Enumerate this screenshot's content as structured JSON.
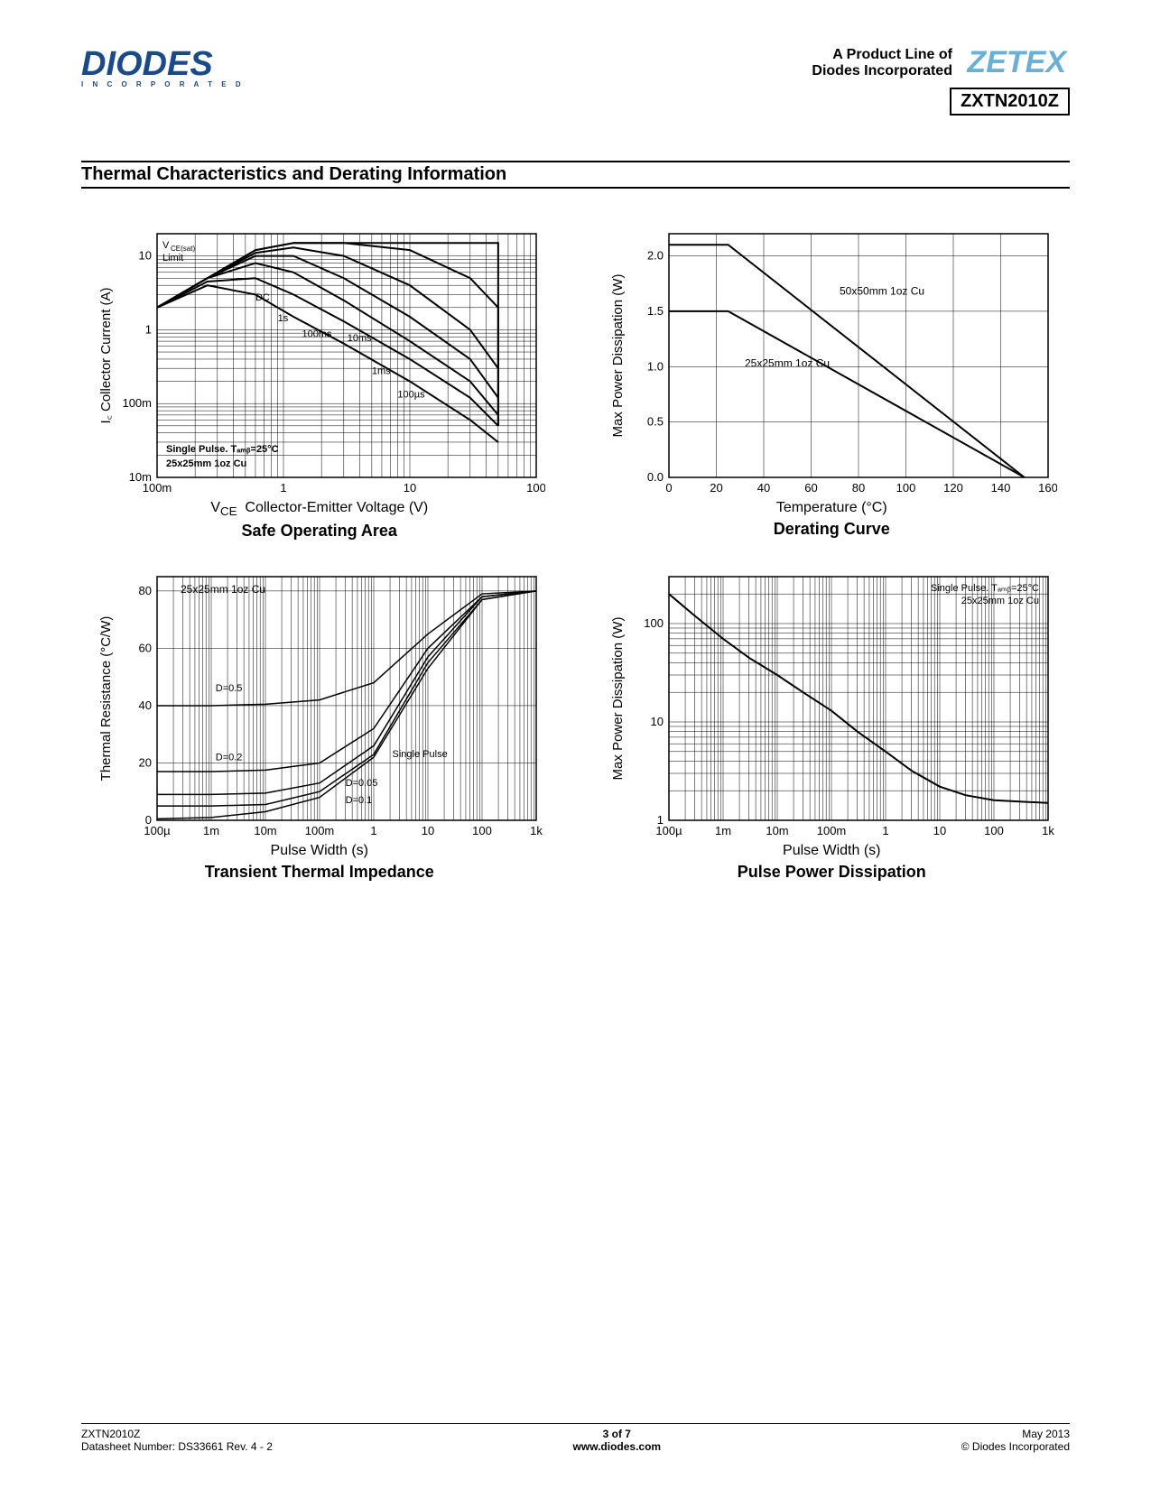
{
  "header": {
    "logo_main": "DIODES",
    "logo_sub": "I N C O R P O R A T E D",
    "product_line1": "A Product Line of",
    "product_line2": "Diodes Incorporated",
    "zetex": "ZETEX",
    "part_number": "ZXTN2010Z"
  },
  "section_title": "Thermal Characteristics and Derating Information",
  "charts": {
    "soa": {
      "type": "line-loglog",
      "title": "Safe Operating Area",
      "xlabel_pre": "V",
      "xlabel_sub": "CE",
      "xlabel_post": "  Collector-Emitter Voltage (V)",
      "ylabel_pre": "I",
      "ylabel_sub": "C",
      "ylabel_post": "  Collector Current (A)",
      "xlim": [
        0.1,
        100
      ],
      "ylim": [
        0.01,
        20
      ],
      "xticks": [
        "100m",
        "1",
        "10",
        "100"
      ],
      "yticks": [
        "10m",
        "100m",
        "1",
        "10"
      ],
      "note1": "Single Pulse. Tₐₘᵦ=25°C",
      "note2": "25x25mm 1oz Cu",
      "annotations": [
        "VCE(sat)",
        "Limit",
        "DC",
        "1s",
        "100ms",
        "10ms",
        "1ms",
        "100µs"
      ],
      "curves": {
        "limit_top": [
          [
            0.1,
            2
          ],
          [
            0.25,
            5
          ],
          [
            0.6,
            12
          ],
          [
            1.2,
            15
          ],
          [
            4,
            15
          ],
          [
            10,
            15
          ],
          [
            50,
            15
          ],
          [
            50,
            0.05
          ]
        ],
        "100us": [
          [
            0.1,
            2
          ],
          [
            0.25,
            5
          ],
          [
            0.6,
            12
          ],
          [
            1.2,
            15
          ],
          [
            3,
            15
          ],
          [
            10,
            12
          ],
          [
            30,
            5
          ],
          [
            50,
            2
          ],
          [
            50,
            0.05
          ]
        ],
        "1ms": [
          [
            0.1,
            2
          ],
          [
            0.25,
            5
          ],
          [
            0.6,
            11
          ],
          [
            1.2,
            13
          ],
          [
            3,
            10
          ],
          [
            10,
            4
          ],
          [
            30,
            1
          ],
          [
            50,
            0.3
          ]
        ],
        "10ms": [
          [
            0.1,
            2
          ],
          [
            0.25,
            5
          ],
          [
            0.6,
            10
          ],
          [
            1.2,
            10
          ],
          [
            3,
            5
          ],
          [
            10,
            1.5
          ],
          [
            30,
            0.4
          ],
          [
            50,
            0.12
          ]
        ],
        "100ms": [
          [
            0.1,
            2
          ],
          [
            0.25,
            5
          ],
          [
            0.6,
            8
          ],
          [
            1.2,
            6
          ],
          [
            3,
            2.5
          ],
          [
            10,
            0.7
          ],
          [
            30,
            0.2
          ],
          [
            50,
            0.07
          ]
        ],
        "1s": [
          [
            0.1,
            2
          ],
          [
            0.25,
            4.5
          ],
          [
            0.6,
            5
          ],
          [
            1.2,
            3
          ],
          [
            3,
            1.3
          ],
          [
            10,
            0.4
          ],
          [
            30,
            0.12
          ],
          [
            50,
            0.05
          ]
        ],
        "DC": [
          [
            0.1,
            2
          ],
          [
            0.25,
            4
          ],
          [
            0.6,
            3
          ],
          [
            1.2,
            1.5
          ],
          [
            3,
            0.65
          ],
          [
            10,
            0.2
          ],
          [
            30,
            0.06
          ],
          [
            50,
            0.03
          ],
          [
            50,
            0.03
          ]
        ]
      },
      "curve_color": "#000000",
      "background_color": "#ffffff"
    },
    "derating": {
      "type": "line",
      "title": "Derating Curve",
      "xlabel": "Temperature (°C)",
      "ylabel": "Max Power Dissipation (W)",
      "xlim": [
        0,
        160
      ],
      "ylim": [
        0,
        2.2
      ],
      "xticks": [
        0,
        20,
        40,
        60,
        80,
        100,
        120,
        140,
        160
      ],
      "yticks": [
        0.0,
        0.5,
        1.0,
        1.5,
        2.0
      ],
      "series": [
        {
          "label": "50x50mm 1oz Cu",
          "data": [
            [
              0,
              2.1
            ],
            [
              25,
              2.1
            ],
            [
              150,
              0
            ]
          ]
        },
        {
          "label": "25x25mm 1oz Cu",
          "data": [
            [
              0,
              1.5
            ],
            [
              25,
              1.5
            ],
            [
              150,
              0
            ]
          ]
        }
      ],
      "curve_color": "#000000"
    },
    "thermal": {
      "type": "line-logx",
      "title": "Transient Thermal Impedance",
      "xlabel": "Pulse Width (s)",
      "ylabel": "Thermal Resistance (°C/W)",
      "xlim": [
        0.0001,
        1000
      ],
      "ylim": [
        0,
        85
      ],
      "xticks": [
        "100µ",
        "1m",
        "10m",
        "100m",
        "1",
        "10",
        "100",
        "1k"
      ],
      "yticks": [
        0,
        20,
        40,
        60,
        80
      ],
      "note1": "25x25mm 1oz Cu",
      "annotations": [
        "D=0.5",
        "D=0.2",
        "D=0.1",
        "D=0.05",
        "Single Pulse"
      ],
      "series": {
        "D05": [
          [
            0.0001,
            40
          ],
          [
            0.001,
            40
          ],
          [
            0.01,
            40.5
          ],
          [
            0.1,
            42
          ],
          [
            1,
            48
          ],
          [
            10,
            65
          ],
          [
            100,
            79
          ],
          [
            1000,
            80
          ]
        ],
        "D02": [
          [
            0.0001,
            17
          ],
          [
            0.001,
            17
          ],
          [
            0.01,
            17.5
          ],
          [
            0.1,
            20
          ],
          [
            1,
            32
          ],
          [
            10,
            60
          ],
          [
            100,
            78
          ],
          [
            1000,
            80
          ]
        ],
        "D01": [
          [
            0.0001,
            9
          ],
          [
            0.001,
            9
          ],
          [
            0.01,
            9.5
          ],
          [
            0.1,
            13
          ],
          [
            1,
            26
          ],
          [
            10,
            57
          ],
          [
            100,
            78
          ],
          [
            1000,
            80
          ]
        ],
        "D005": [
          [
            0.0001,
            5
          ],
          [
            0.001,
            5
          ],
          [
            0.01,
            5.5
          ],
          [
            0.1,
            10
          ],
          [
            1,
            23
          ],
          [
            10,
            55
          ],
          [
            100,
            77
          ],
          [
            1000,
            80
          ]
        ],
        "SP": [
          [
            0.0001,
            0.5
          ],
          [
            0.001,
            1
          ],
          [
            0.01,
            3
          ],
          [
            0.1,
            8
          ],
          [
            1,
            22
          ],
          [
            10,
            53
          ],
          [
            100,
            77
          ],
          [
            1000,
            80
          ]
        ]
      },
      "curve_color": "#000000"
    },
    "pulse": {
      "type": "line-loglog",
      "title": "Pulse Power Dissipation",
      "xlabel": "Pulse Width (s)",
      "ylabel": "Max Power Dissipation (W)",
      "xlim": [
        0.0001,
        1000
      ],
      "ylim": [
        1,
        300
      ],
      "xticks": [
        "100µ",
        "1m",
        "10m",
        "100m",
        "1",
        "10",
        "100",
        "1k"
      ],
      "yticks": [
        "1",
        "10",
        "100"
      ],
      "note1": "Single Pulse. Tₐₘᵦ=25°C",
      "note2": "25x25mm 1oz Cu",
      "data": [
        [
          0.0001,
          200
        ],
        [
          0.0003,
          120
        ],
        [
          0.001,
          70
        ],
        [
          0.003,
          45
        ],
        [
          0.01,
          30
        ],
        [
          0.03,
          20
        ],
        [
          0.1,
          13
        ],
        [
          0.3,
          8
        ],
        [
          1,
          5
        ],
        [
          3,
          3.2
        ],
        [
          10,
          2.2
        ],
        [
          30,
          1.8
        ],
        [
          100,
          1.6
        ],
        [
          300,
          1.55
        ],
        [
          1000,
          1.5
        ]
      ],
      "curve_color": "#000000"
    }
  },
  "footer": {
    "left1": "ZXTN2010Z",
    "left2": "Datasheet Number: DS33661 Rev. 4 - 2",
    "mid1": "3 of 7",
    "mid2": "www.diodes.com",
    "right1": "May 2013",
    "right2": "© Diodes Incorporated"
  }
}
